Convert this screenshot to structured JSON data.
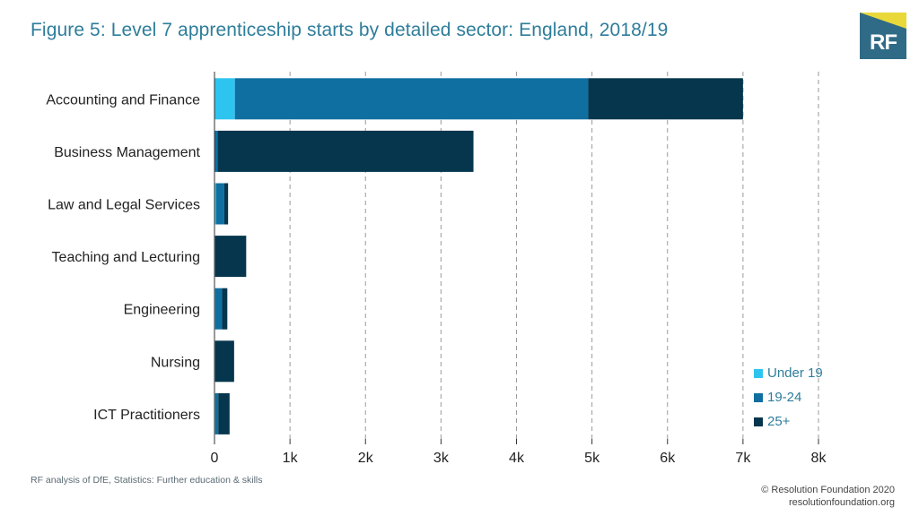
{
  "header": {
    "title": "Figure 5: Level 7 apprenticeship starts by detailed sector: England, 2018/19",
    "logo_text": "RF"
  },
  "chart_data": {
    "type": "bar",
    "orientation": "horizontal",
    "stacked": true,
    "title": "Figure 5: Level 7 apprenticeship starts by detailed sector: England, 2018/19",
    "categories": [
      "Accounting and Finance",
      "Business Management",
      "Law and Legal Services",
      "Teaching and Lecturing",
      "Engineering",
      "Nursing",
      "ICT Practitioners"
    ],
    "series": [
      {
        "name": "Under 19",
        "color": "#2ec4f0",
        "values": [
          270,
          0,
          20,
          0,
          10,
          0,
          10
        ]
      },
      {
        "name": "19-24",
        "color": "#0f6fa0",
        "values": [
          4680,
          40,
          110,
          10,
          90,
          10,
          40
        ]
      },
      {
        "name": "25+",
        "color": "#05364d",
        "values": [
          2050,
          3390,
          50,
          410,
          70,
          250,
          150
        ]
      }
    ],
    "xlim": [
      0,
      8000
    ],
    "xticks": [
      0,
      1000,
      2000,
      3000,
      4000,
      5000,
      6000,
      7000,
      8000
    ],
    "xtick_labels": [
      "0",
      "1k",
      "2k",
      "3k",
      "4k",
      "5k",
      "6k",
      "7k",
      "8k"
    ],
    "grid": "vertical-dashed",
    "legend_position": "bottom-right"
  },
  "footer": {
    "source": "RF analysis of DfE, Statistics: Further education & skills",
    "copyright_line1": "© Resolution Foundation 2020",
    "copyright_line2": "resolutionfoundation.org"
  }
}
